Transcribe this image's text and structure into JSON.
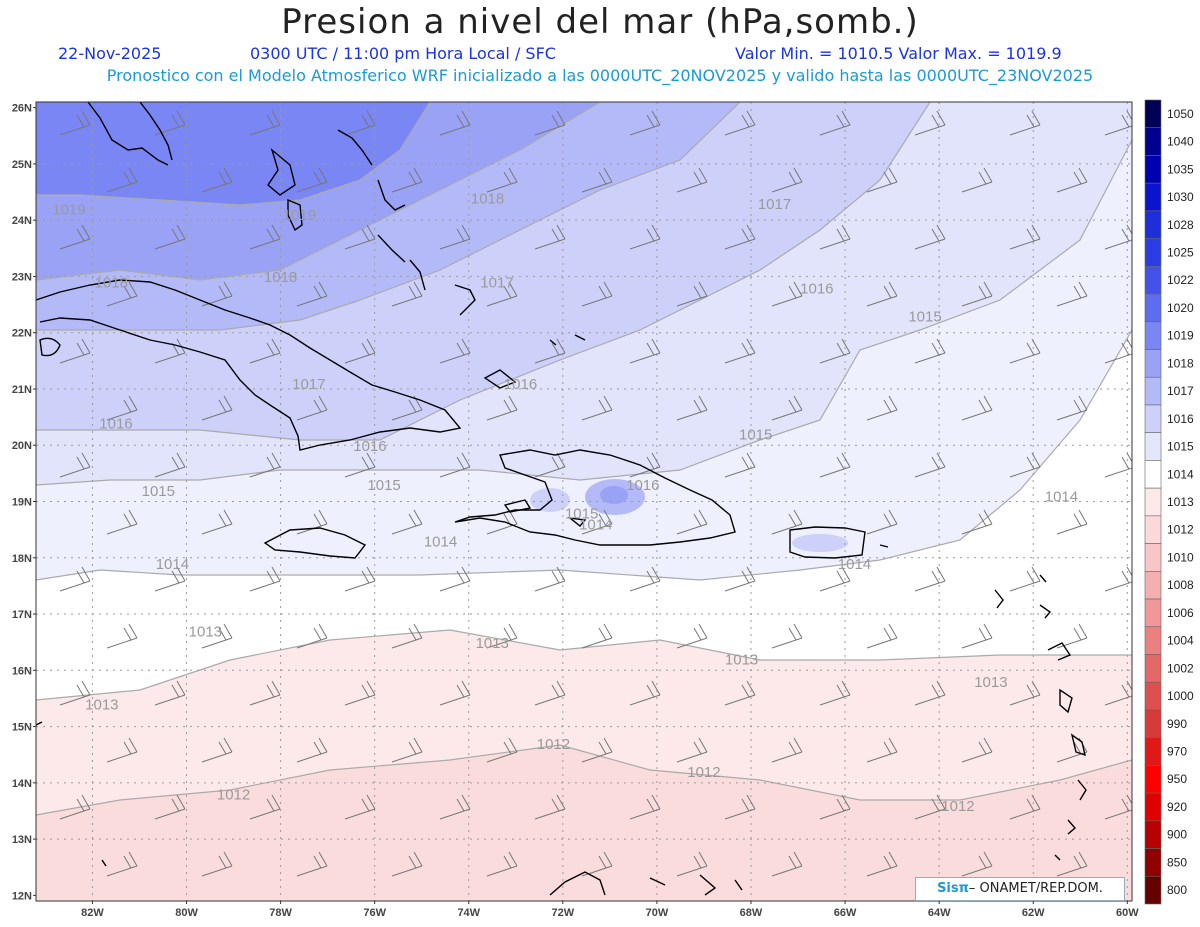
{
  "header": {
    "title": "Presion a nivel del mar (hPa,somb.)",
    "date": "22-Nov-2025",
    "time": "0300 UTC / 11:00 pm Hora Local / SFC",
    "minmax": "Valor Min. = 1010.5  Valor Max. = 1019.9",
    "model_info": "Pronostico con el Modelo Atmosferico WRF inicializado a las 0000UTC_20NOV2025 y valido hasta las  0000UTC_23NOV2025"
  },
  "map": {
    "lat_labels": [
      "26N",
      "25N",
      "24N",
      "23N",
      "22N",
      "21N",
      "20N",
      "19N",
      "18N",
      "17N",
      "16N",
      "15N",
      "14N",
      "13N",
      "12N"
    ],
    "lon_labels": [
      "82W",
      "80W",
      "78W",
      "76W",
      "74W",
      "72W",
      "70W",
      "68W",
      "66W",
      "64W",
      "62W",
      "60W"
    ],
    "contour_labels": [
      {
        "text": "1019",
        "lon": -82.5,
        "lat": 24.1
      },
      {
        "text": "1019",
        "lon": -77.6,
        "lat": 24.0
      },
      {
        "text": "1018",
        "lon": -73.6,
        "lat": 24.3
      },
      {
        "text": "1017",
        "lon": -67.5,
        "lat": 24.2
      },
      {
        "text": "1018",
        "lon": -81.6,
        "lat": 22.8
      },
      {
        "text": "1018",
        "lon": -78.0,
        "lat": 22.9
      },
      {
        "text": "1017",
        "lon": -73.4,
        "lat": 22.8
      },
      {
        "text": "1016",
        "lon": -66.6,
        "lat": 22.7
      },
      {
        "text": "1015",
        "lon": -64.3,
        "lat": 22.2
      },
      {
        "text": "1017",
        "lon": -77.4,
        "lat": 21.0
      },
      {
        "text": "1016",
        "lon": -72.9,
        "lat": 21.0
      },
      {
        "text": "1016",
        "lon": -81.5,
        "lat": 20.3
      },
      {
        "text": "1016",
        "lon": -76.1,
        "lat": 19.9
      },
      {
        "text": "1015",
        "lon": -67.9,
        "lat": 20.1
      },
      {
        "text": "1015",
        "lon": -80.6,
        "lat": 19.1
      },
      {
        "text": "1015",
        "lon": -75.8,
        "lat": 19.2
      },
      {
        "text": "1016",
        "lon": -70.3,
        "lat": 19.2
      },
      {
        "text": "1015",
        "lon": -71.6,
        "lat": 18.7
      },
      {
        "text": "1014",
        "lon": -71.3,
        "lat": 18.5
      },
      {
        "text": "1014",
        "lon": -61.4,
        "lat": 19.0
      },
      {
        "text": "1014",
        "lon": -74.6,
        "lat": 18.2
      },
      {
        "text": "1014",
        "lon": -80.3,
        "lat": 17.8
      },
      {
        "text": "1014",
        "lon": -65.8,
        "lat": 17.8
      },
      {
        "text": "1013",
        "lon": -79.6,
        "lat": 16.6
      },
      {
        "text": "1013",
        "lon": -73.5,
        "lat": 16.4
      },
      {
        "text": "1013",
        "lon": -68.2,
        "lat": 16.1
      },
      {
        "text": "1013",
        "lon": -62.9,
        "lat": 15.7
      },
      {
        "text": "1013",
        "lon": -81.8,
        "lat": 15.3
      },
      {
        "text": "1012",
        "lon": -72.2,
        "lat": 14.6
      },
      {
        "text": "1012",
        "lon": -69.0,
        "lat": 14.1
      },
      {
        "text": "1012",
        "lon": -79.0,
        "lat": 13.7
      },
      {
        "text": "1012",
        "lon": -63.6,
        "lat": 13.5
      }
    ]
  },
  "legend": {
    "values": [
      "1050",
      "1040",
      "1035",
      "1030",
      "1028",
      "1025",
      "1022",
      "1020",
      "1019",
      "1018",
      "1017",
      "1016",
      "1015",
      "1014",
      "1013",
      "1012",
      "1010",
      "1008",
      "1006",
      "1004",
      "1002",
      "1000",
      "990",
      "970",
      "950",
      "920",
      "900",
      "850",
      "800"
    ],
    "colors": [
      "#000055",
      "#00008f",
      "#0000b3",
      "#0a14cc",
      "#1e2ed9",
      "#2c3ee3",
      "#4452ea",
      "#5e6cef",
      "#7a86f3",
      "#9aa2f6",
      "#b4baf8",
      "#cdd1fa",
      "#e4e6fc",
      "#ffffff",
      "#fde9e9",
      "#fbd9d9",
      "#f8c6c6",
      "#f4b0b0",
      "#f09898",
      "#eb8080",
      "#e56868",
      "#de5050",
      "#d63a3a",
      "#e01818",
      "#ff0000",
      "#e00000",
      "#b80000",
      "#900000",
      "#660000"
    ]
  },
  "credit": {
    "sis": "Sisπ",
    "text": " ONAMET/REP.DOM."
  }
}
